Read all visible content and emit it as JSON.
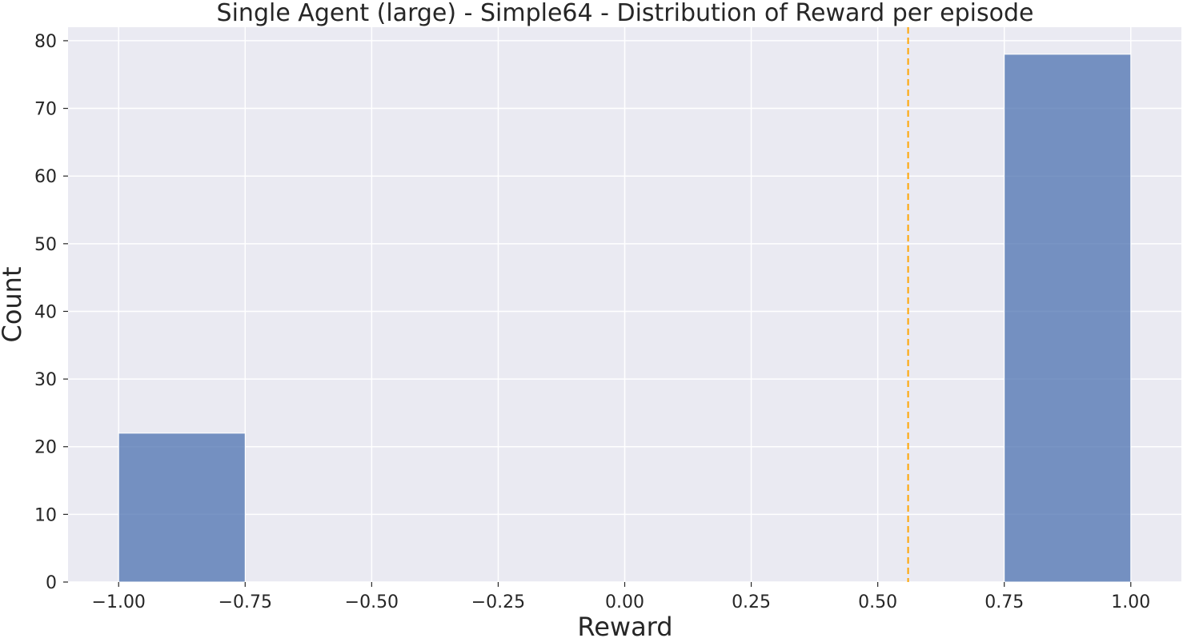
{
  "chart_data": {
    "type": "bar",
    "title": "Single Agent (large) - Simple64 - Distribution of Reward per episode",
    "xlabel": "Reward",
    "ylabel": "Count",
    "xlim": [
      -1.1,
      1.1
    ],
    "ylim": [
      0,
      82
    ],
    "grid": true,
    "x_ticks": [
      -1.0,
      -0.75,
      -0.5,
      -0.25,
      0.0,
      0.25,
      0.5,
      0.75,
      1.0
    ],
    "x_tick_labels": [
      "−1.00",
      "−0.75",
      "−0.50",
      "−0.25",
      "0.00",
      "0.25",
      "0.50",
      "0.75",
      "1.00"
    ],
    "y_ticks": [
      0,
      10,
      20,
      30,
      40,
      50,
      60,
      70,
      80
    ],
    "y_tick_labels": [
      "0",
      "10",
      "20",
      "30",
      "40",
      "50",
      "60",
      "70",
      "80"
    ],
    "bins": [
      {
        "x0": -1.0,
        "x1": -0.75,
        "count": 22
      },
      {
        "x0": 0.75,
        "x1": 1.0,
        "count": 78
      }
    ],
    "mean_line": {
      "x": 0.56,
      "style": "dashed"
    },
    "colors": {
      "bar": "#4c72b0",
      "bar_edge": "#ffffff",
      "mean_line": "#ffa500",
      "background": "#eaeaf2",
      "grid": "#ffffff"
    }
  }
}
